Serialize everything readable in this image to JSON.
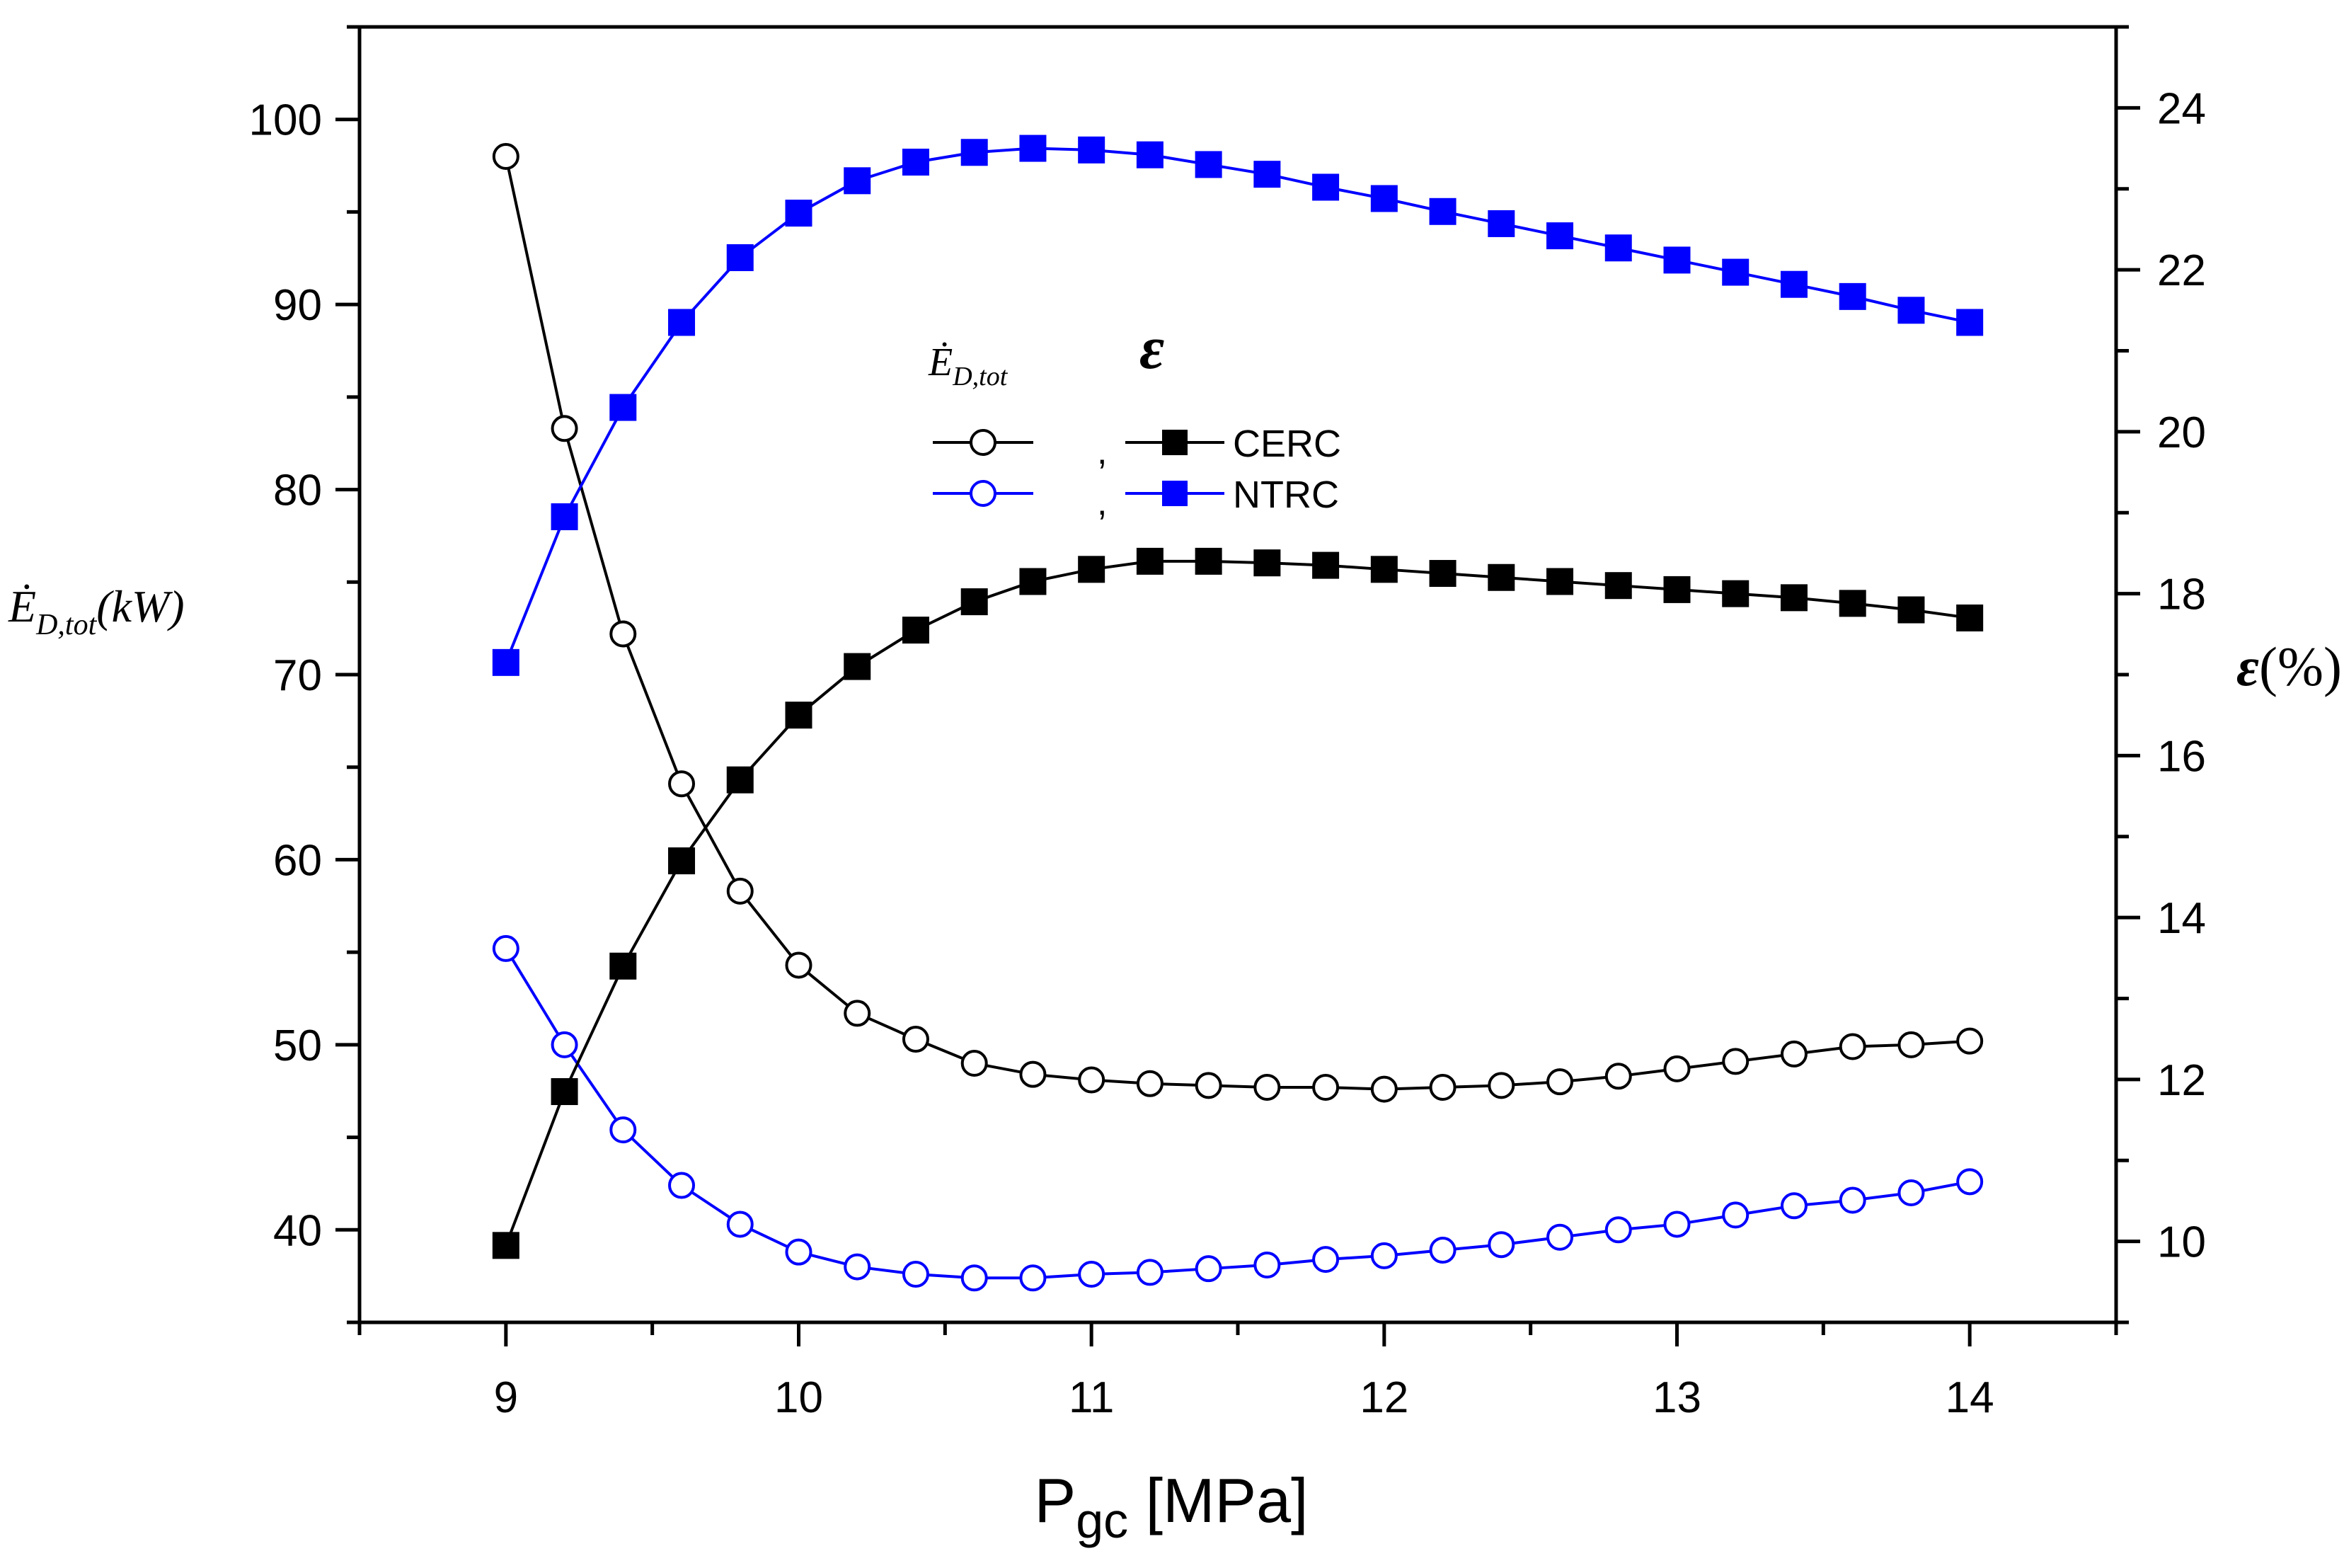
{
  "chart_data": {
    "type": "line",
    "x_axis": {
      "label_main": "P",
      "label_sub": "gc",
      "label_unit": "[MPa]",
      "range": [
        8.5,
        14.5
      ],
      "ticks": [
        9,
        10,
        11,
        12,
        13,
        14
      ],
      "tick_labels": [
        "9",
        "10",
        "11",
        "12",
        "13",
        "14"
      ]
    },
    "y_left": {
      "label_symbol": "Ė",
      "label_sub": "D,tot",
      "label_unit": "(kW)",
      "range": [
        35,
        105
      ],
      "ticks": [
        40,
        50,
        60,
        70,
        80,
        90,
        100
      ],
      "tick_labels": [
        "40",
        "50",
        "60",
        "70",
        "80",
        "90",
        "100"
      ]
    },
    "y_right": {
      "label_symbol": "ε",
      "label_unit": "(%)",
      "range": [
        9,
        25
      ],
      "ticks": [
        10,
        12,
        14,
        16,
        18,
        20,
        22,
        24
      ],
      "tick_labels": [
        "10",
        "12",
        "14",
        "16",
        "18",
        "20",
        "22",
        "24"
      ]
    },
    "legend": {
      "header_left_symbol": "Ė",
      "header_left_sub": "D,tot",
      "header_right_symbol": "ε",
      "separator": ",",
      "entries": [
        "CERC",
        "NTRC"
      ]
    },
    "x": [
      9.0,
      9.2,
      9.4,
      9.6,
      9.8,
      10.0,
      10.2,
      10.4,
      10.6,
      10.8,
      11.0,
      11.2,
      11.4,
      11.6,
      11.8,
      12.0,
      12.2,
      12.4,
      12.6,
      12.8,
      13.0,
      13.2,
      13.4,
      13.6,
      13.8,
      14.0
    ],
    "series": [
      {
        "name": "CERC",
        "quantity": "exergy destruction",
        "axis": "left",
        "marker": "open-circle",
        "color": "#000000",
        "values": [
          98.0,
          83.3,
          72.2,
          64.1,
          58.3,
          54.3,
          51.7,
          50.3,
          49.0,
          48.4,
          48.1,
          47.9,
          47.8,
          47.7,
          47.7,
          47.6,
          47.7,
          47.8,
          48.0,
          48.3,
          48.7,
          49.1,
          49.5,
          49.9,
          50.0,
          50.2
        ]
      },
      {
        "name": "NTRC",
        "quantity": "exergy destruction",
        "axis": "left",
        "marker": "open-circle",
        "color": "#0000ff",
        "values": [
          55.2,
          50.0,
          45.4,
          42.4,
          40.3,
          38.8,
          38.0,
          37.6,
          37.4,
          37.4,
          37.6,
          37.7,
          37.9,
          38.1,
          38.4,
          38.6,
          38.9,
          39.2,
          39.6,
          40.0,
          40.3,
          40.8,
          41.3,
          41.6,
          42.0,
          42.6
        ]
      },
      {
        "name": "CERC",
        "quantity": "efficiency",
        "axis": "right",
        "marker": "filled-square",
        "color": "#000000",
        "values": [
          9.95,
          11.85,
          13.4,
          14.7,
          15.7,
          16.5,
          17.1,
          17.55,
          17.9,
          18.15,
          18.3,
          18.4,
          18.4,
          18.38,
          18.35,
          18.3,
          18.25,
          18.2,
          18.15,
          18.1,
          18.05,
          18.0,
          17.95,
          17.88,
          17.8,
          17.7
        ]
      },
      {
        "name": "NTRC",
        "quantity": "efficiency",
        "axis": "right",
        "marker": "filled-square",
        "color": "#0000ff",
        "values": [
          17.15,
          18.95,
          20.3,
          21.35,
          22.15,
          22.7,
          23.1,
          23.33,
          23.45,
          23.5,
          23.48,
          23.42,
          23.3,
          23.18,
          23.02,
          22.88,
          22.72,
          22.57,
          22.42,
          22.27,
          22.12,
          21.97,
          21.82,
          21.67,
          21.5,
          21.35
        ]
      }
    ]
  }
}
